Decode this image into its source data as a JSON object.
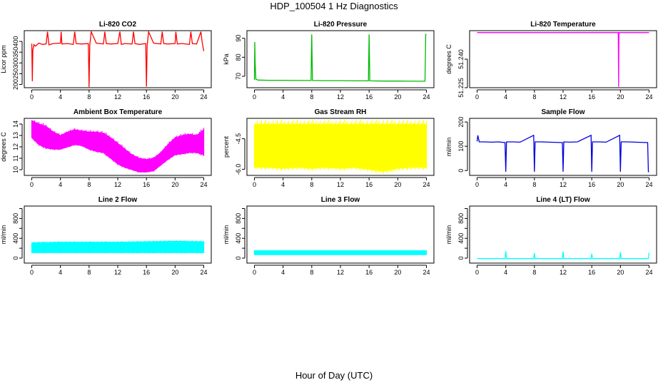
{
  "page": {
    "title": "HDP_100504  1 Hz Diagnostics",
    "xlabel": "Hour of Day (UTC)"
  },
  "chart_data": [
    {
      "type": "line",
      "title": "Li-820 CO2",
      "ylabel": "Licor ppm",
      "color": "#ff0000",
      "xlim": [
        0,
        24
      ],
      "ylim": [
        185,
        450
      ],
      "xticks": [
        "0",
        "4",
        "8",
        "12",
        "16",
        "20",
        "24"
      ],
      "yticks": [
        200,
        250,
        300,
        350,
        400
      ],
      "x": [
        0,
        0.08,
        0.15,
        0.3,
        0.5,
        1.0,
        1.5,
        2.0,
        2.2,
        2.4,
        3.0,
        4.0,
        4.1,
        4.2,
        5.0,
        5.8,
        6.0,
        6.2,
        7.0,
        7.9,
        8.0,
        8.1,
        8.3,
        9.0,
        10.0,
        10.2,
        10.4,
        11.0,
        12.0,
        12.3,
        12.5,
        13.0,
        14.0,
        14.2,
        14.4,
        15.0,
        15.9,
        16.0,
        16.1,
        16.3,
        17.0,
        18.0,
        18.2,
        18.4,
        19.0,
        20.0,
        20.1,
        20.3,
        21.0,
        22.0,
        22.2,
        22.4,
        23.0,
        23.6,
        23.8,
        24.0
      ],
      "y": [
        390,
        215,
        360,
        385,
        378,
        392,
        386,
        388,
        445,
        384,
        390,
        392,
        445,
        388,
        390,
        386,
        445,
        390,
        388,
        390,
        188,
        382,
        445,
        392,
        388,
        445,
        390,
        388,
        390,
        445,
        386,
        390,
        388,
        445,
        390,
        386,
        390,
        190,
        380,
        445,
        392,
        388,
        445,
        390,
        388,
        390,
        445,
        388,
        390,
        386,
        445,
        390,
        388,
        445,
        392,
        355
      ],
      "series_values_note": ""
    },
    {
      "type": "line",
      "title": "Li-820 Pressure",
      "ylabel": "kPa",
      "color": "#00bb00",
      "xlim": [
        0,
        24
      ],
      "ylim": [
        64,
        94
      ],
      "xticks": [
        "0",
        "4",
        "8",
        "12",
        "16",
        "20",
        "24"
      ],
      "yticks": [
        70,
        80,
        90
      ],
      "x": [
        0,
        0.05,
        0.1,
        0.2,
        0.5,
        2,
        4,
        6,
        7.9,
        8.0,
        8.1,
        10,
        12,
        14,
        15.9,
        16.0,
        16.1,
        18,
        20,
        22,
        23.8,
        23.9,
        24.0
      ],
      "y": [
        68,
        88,
        77,
        68.5,
        68,
        67.9,
        67.9,
        67.8,
        67.8,
        92,
        67.8,
        67.7,
        67.7,
        67.6,
        67.6,
        92,
        67.6,
        67.5,
        67.5,
        67.4,
        67.4,
        92,
        92
      ]
    },
    {
      "type": "line",
      "title": "Li-820 Temperature",
      "ylabel": "degrees C",
      "color": "#ff00ff",
      "xlim": [
        0,
        24
      ],
      "ylim": [
        51.225,
        51.255
      ],
      "xticks": [
        "0",
        "4",
        "8",
        "12",
        "16",
        "20",
        "24"
      ],
      "ytick_labels": [
        "51.225",
        "51.240"
      ],
      "yticks": [
        51.225,
        51.24
      ],
      "x": [
        0,
        2,
        4,
        6,
        8,
        10,
        12,
        14,
        16,
        18,
        19.7,
        19.75,
        19.8,
        20,
        22,
        24
      ],
      "y": [
        51.254,
        51.254,
        51.254,
        51.254,
        51.254,
        51.254,
        51.254,
        51.254,
        51.254,
        51.254,
        51.254,
        51.2255,
        51.254,
        51.254,
        51.254,
        51.254
      ]
    },
    {
      "type": "area",
      "title": "Ambient Box Temperature",
      "ylabel": "degrees C",
      "color": "#ff00ff",
      "xlim": [
        0,
        24
      ],
      "ylim": [
        9.5,
        14.5
      ],
      "xticks": [
        "0",
        "4",
        "8",
        "12",
        "16",
        "20",
        "24"
      ],
      "yticks": [
        10,
        11,
        12,
        13,
        14
      ],
      "x": [
        0,
        1,
        2,
        3,
        4,
        5,
        6,
        7,
        8,
        9,
        10,
        11,
        12,
        13,
        14,
        15,
        16,
        17,
        18,
        19,
        20,
        21,
        22,
        23,
        24
      ],
      "y_upper": [
        14.3,
        14.0,
        13.8,
        13.3,
        13.0,
        13.3,
        13.5,
        13.4,
        13.3,
        13.3,
        13.2,
        12.8,
        12.3,
        11.8,
        11.3,
        11.0,
        10.9,
        11.0,
        11.5,
        12.2,
        12.8,
        13.0,
        13.1,
        13.0,
        13.5
      ],
      "y_lower": [
        12.8,
        12.2,
        11.9,
        11.8,
        11.8,
        12.0,
        12.2,
        12.1,
        11.8,
        11.6,
        11.5,
        11.0,
        10.5,
        10.2,
        10.0,
        9.8,
        9.8,
        9.9,
        10.4,
        10.9,
        11.3,
        11.4,
        11.5,
        11.5,
        11.3
      ]
    },
    {
      "type": "area",
      "title": "Gas Stream RH",
      "ylabel": "percent",
      "color": "#ffff00",
      "xlim": [
        0,
        24
      ],
      "ylim": [
        -6.3,
        -3.5
      ],
      "xticks": [
        "0",
        "4",
        "8",
        "12",
        "16",
        "20",
        "24"
      ],
      "yticks": [
        -6.0,
        -4.5
      ],
      "ytick_labels": [
        "-6.0",
        "-4.5"
      ],
      "x": [
        0,
        2,
        4,
        6,
        8,
        10,
        12,
        14,
        16,
        18,
        20,
        22,
        24
      ],
      "y_upper": [
        -3.8,
        -3.8,
        -3.8,
        -3.8,
        -3.8,
        -3.8,
        -3.8,
        -3.8,
        -3.8,
        -3.8,
        -3.8,
        -3.8,
        -3.8
      ],
      "y_lower": [
        -5.9,
        -5.9,
        -5.95,
        -5.9,
        -5.95,
        -5.9,
        -5.95,
        -5.9,
        -6.0,
        -6.1,
        -5.95,
        -5.9,
        -5.9
      ]
    },
    {
      "type": "line",
      "title": "Sample Flow",
      "ylabel": "ml/min",
      "color": "#0000dd",
      "xlim": [
        0,
        24
      ],
      "ylim": [
        -20,
        215
      ],
      "xticks": [
        "0",
        "4",
        "8",
        "12",
        "16",
        "20",
        "24"
      ],
      "yticks": [
        0,
        100,
        200
      ],
      "x": [
        0,
        0.1,
        0.3,
        1,
        2,
        3,
        3.9,
        4.0,
        4.1,
        5,
        6,
        7.9,
        8.0,
        8.1,
        9,
        10,
        11.9,
        12.0,
        12.1,
        13,
        14,
        15.9,
        16.0,
        16.1,
        17,
        18,
        19.9,
        20.0,
        20.1,
        21,
        22,
        23.8,
        23.9,
        24.0
      ],
      "y": [
        120,
        145,
        118,
        118,
        117,
        118,
        115,
        -5,
        118,
        118,
        117,
        145,
        -5,
        118,
        118,
        117,
        115,
        -5,
        118,
        117,
        118,
        145,
        -5,
        118,
        118,
        117,
        145,
        -5,
        118,
        118,
        117,
        115,
        -5,
        -5
      ]
    },
    {
      "type": "area",
      "title": "Line 2 Flow",
      "ylabel": "ml/min",
      "color": "#00ffff",
      "xlim": [
        0,
        24
      ],
      "ylim": [
        -100,
        1050
      ],
      "xticks": [
        "0",
        "4",
        "8",
        "12",
        "16",
        "20",
        "24"
      ],
      "yticks": [
        0,
        200,
        400,
        600,
        800,
        1000
      ],
      "yticks_labeled": [
        0,
        400,
        800
      ],
      "x": [
        0,
        4,
        8,
        12,
        16,
        20,
        24
      ],
      "y_upper": [
        310,
        320,
        320,
        320,
        330,
        340,
        330
      ],
      "y_lower": [
        110,
        110,
        110,
        110,
        110,
        110,
        110
      ]
    },
    {
      "type": "area",
      "title": "Line 3 Flow",
      "ylabel": "ml/min",
      "color": "#00ffff",
      "xlim": [
        0,
        24
      ],
      "ylim": [
        -100,
        1050
      ],
      "xticks": [
        "0",
        "4",
        "8",
        "12",
        "16",
        "20",
        "24"
      ],
      "yticks": [
        0,
        200,
        400,
        600,
        800,
        1000
      ],
      "yticks_labeled": [
        0,
        400,
        800
      ],
      "x": [
        0,
        4,
        8,
        12,
        16,
        20,
        24
      ],
      "y_upper": [
        150,
        150,
        150,
        150,
        150,
        150,
        150
      ],
      "y_lower": [
        70,
        70,
        70,
        70,
        70,
        70,
        70
      ]
    },
    {
      "type": "line",
      "title": "Line 4 (LT) Flow",
      "ylabel": "ml/min",
      "color": "#00ffff",
      "xlim": [
        0,
        24
      ],
      "ylim": [
        -100,
        1050
      ],
      "xticks": [
        "0",
        "4",
        "8",
        "12",
        "16",
        "20",
        "24"
      ],
      "yticks": [
        0,
        200,
        400,
        600,
        800,
        1000
      ],
      "yticks_labeled": [
        0,
        400,
        800
      ],
      "x": [
        0,
        3.9,
        4.0,
        4.1,
        7.9,
        8.0,
        8.1,
        11.9,
        12.0,
        12.1,
        15.9,
        16.0,
        16.1,
        19.9,
        20.0,
        20.1,
        23.9,
        24.0
      ],
      "y": [
        -10,
        -10,
        140,
        -10,
        -10,
        100,
        -10,
        -10,
        130,
        -10,
        -10,
        90,
        -10,
        -10,
        120,
        -10,
        -10,
        110
      ]
    }
  ]
}
